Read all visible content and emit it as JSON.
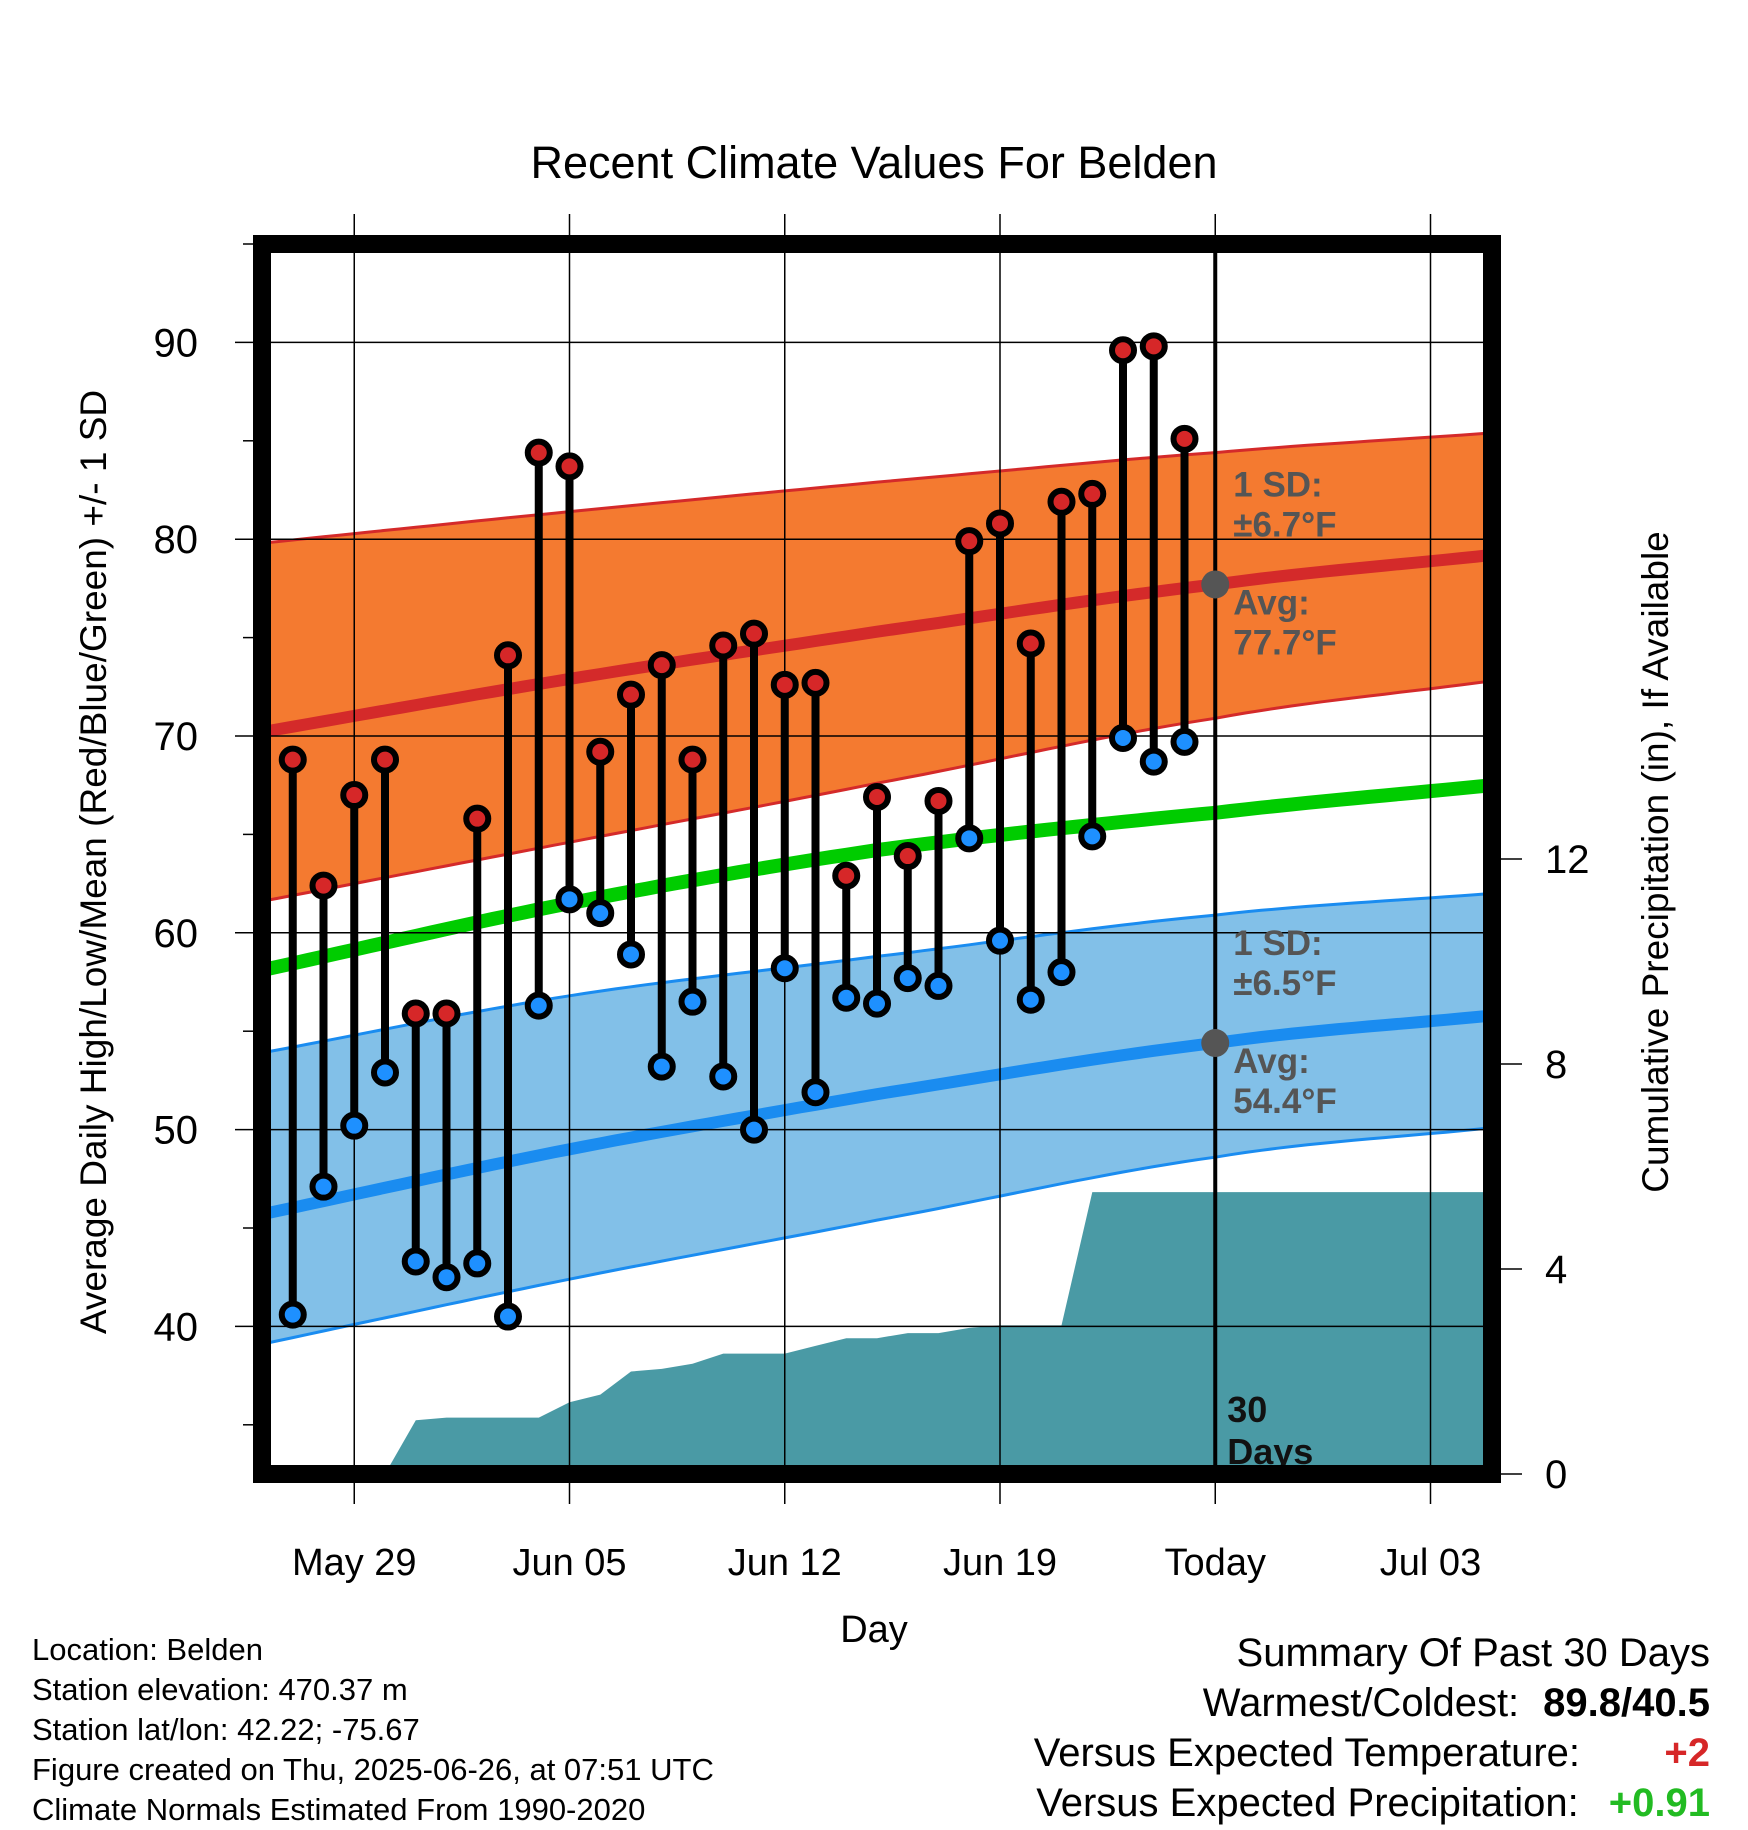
{
  "title": "Recent Climate Values For Belden",
  "chart_data": {
    "type": "line",
    "title": "Recent Climate Values For Belden",
    "xlabel": "Day",
    "ylabel": "Average Daily High/Low/Mean (Red/Blue/Green) +/- 1 SD",
    "y2label": "Cumulative Precipitation (in), If Available",
    "x_range": [
      "2025-05-26",
      "2025-07-05"
    ],
    "ylim": [
      32.5,
      95
    ],
    "y2lim": [
      0,
      24
    ],
    "y_ticks": [
      40,
      50,
      60,
      70,
      80,
      90
    ],
    "y2_ticks": [
      0,
      4,
      8,
      12
    ],
    "x_ticks": [
      {
        "date": "2025-05-29",
        "label": "May 29"
      },
      {
        "date": "2025-06-05",
        "label": "Jun 05"
      },
      {
        "date": "2025-06-12",
        "label": "Jun 12"
      },
      {
        "date": "2025-06-19",
        "label": "Jun 19"
      },
      {
        "date": "2025-06-26",
        "label": "Today"
      },
      {
        "date": "2025-07-03",
        "label": "Jul 03"
      }
    ],
    "grid": true,
    "today_marker": {
      "date": "2025-06-26",
      "label_line1": "30",
      "label_line2": "Days"
    },
    "daily": {
      "dates": [
        "2025-05-27",
        "2025-05-28",
        "2025-05-29",
        "2025-05-30",
        "2025-05-31",
        "2025-06-01",
        "2025-06-02",
        "2025-06-03",
        "2025-06-04",
        "2025-06-05",
        "2025-06-06",
        "2025-06-07",
        "2025-06-08",
        "2025-06-09",
        "2025-06-10",
        "2025-06-11",
        "2025-06-12",
        "2025-06-13",
        "2025-06-14",
        "2025-06-15",
        "2025-06-16",
        "2025-06-17",
        "2025-06-18",
        "2025-06-19",
        "2025-06-20",
        "2025-06-21",
        "2025-06-22",
        "2025-06-23",
        "2025-06-24",
        "2025-06-25"
      ],
      "highs": [
        68.8,
        62.4,
        67.0,
        68.8,
        55.9,
        55.9,
        65.8,
        74.1,
        84.4,
        83.7,
        69.2,
        72.1,
        73.6,
        68.8,
        74.6,
        75.2,
        72.6,
        72.7,
        62.9,
        66.9,
        63.9,
        66.7,
        79.9,
        80.8,
        74.7,
        81.9,
        82.3,
        89.6,
        89.8,
        85.1
      ],
      "lows": [
        40.6,
        47.1,
        50.2,
        52.9,
        43.3,
        42.5,
        43.2,
        40.5,
        56.3,
        61.7,
        61.0,
        58.9,
        53.2,
        56.5,
        52.7,
        50.0,
        58.2,
        51.9,
        56.7,
        56.4,
        57.7,
        57.3,
        64.8,
        59.6,
        56.6,
        58.0,
        64.9,
        69.9,
        68.7,
        69.7
      ]
    },
    "normal_high": {
      "dates": [
        "2025-05-26",
        "2025-06-05",
        "2025-06-15",
        "2025-06-26",
        "2025-07-05"
      ],
      "avg": [
        70.2,
        72.9,
        75.3,
        77.7,
        79.2
      ],
      "upper": [
        79.8,
        81.4,
        82.9,
        84.4,
        85.4
      ],
      "lower": [
        61.6,
        64.6,
        67.6,
        70.9,
        72.8
      ]
    },
    "normal_mean": {
      "dates": [
        "2025-05-26",
        "2025-06-05",
        "2025-06-15",
        "2025-06-26",
        "2025-07-05"
      ],
      "avg": [
        58.1,
        61.5,
        64.2,
        66.1,
        67.5
      ]
    },
    "normal_low": {
      "dates": [
        "2025-05-26",
        "2025-06-05",
        "2025-06-15",
        "2025-06-26",
        "2025-07-05"
      ],
      "avg": [
        45.7,
        49.0,
        51.8,
        54.4,
        55.8
      ],
      "upper": [
        53.9,
        56.8,
        58.8,
        60.9,
        62.0
      ],
      "lower": [
        39.1,
        42.4,
        45.4,
        48.6,
        50.1
      ]
    },
    "precip": {
      "dates": [
        "2025-05-27",
        "2025-05-30",
        "2025-05-31",
        "2025-06-01",
        "2025-06-04",
        "2025-06-05",
        "2025-06-06",
        "2025-06-07",
        "2025-06-08",
        "2025-06-09",
        "2025-06-10",
        "2025-06-11",
        "2025-06-12",
        "2025-06-13",
        "2025-06-14",
        "2025-06-15",
        "2025-06-16",
        "2025-06-17",
        "2025-06-18",
        "2025-06-19",
        "2025-06-20",
        "2025-06-21",
        "2025-06-22",
        "2025-06-26",
        "2025-07-05"
      ],
      "cumulative": [
        0.0,
        0.0,
        1.05,
        1.1,
        1.1,
        1.4,
        1.55,
        2.0,
        2.05,
        2.15,
        2.35,
        2.35,
        2.35,
        2.5,
        2.65,
        2.65,
        2.75,
        2.75,
        2.85,
        2.9,
        2.9,
        2.9,
        5.5,
        5.5,
        5.5
      ]
    },
    "annotations": {
      "high_sd": {
        "line1": "1 SD:",
        "line2": "±6.7°F"
      },
      "high_avg": {
        "line1": "Avg:",
        "line2": "77.7°F",
        "value": 77.7
      },
      "low_sd": {
        "line1": "1 SD:",
        "line2": "±6.5°F"
      },
      "low_avg": {
        "line1": "Avg:",
        "line2": "54.4°F",
        "value": 54.4
      }
    },
    "colors": {
      "high_band": "#f47a30",
      "high_line": "#d42a2a",
      "low_band": "#82c0e8",
      "low_line": "#1a8cf0",
      "mean_line": "#00cc00",
      "precip_fill": "#4a9aa5",
      "high_dot": "#d62728",
      "low_dot": "#1e90ff",
      "annotation": "#555555"
    }
  },
  "info": {
    "location": "Location: Belden",
    "elevation": "Station elevation: 470.37 m",
    "latlon": "Station lat/lon: 42.22; -75.67",
    "created": "Figure created on Thu, 2025-06-26, at 07:51 UTC",
    "normals": "Climate Normals Estimated From 1990-2020"
  },
  "summary": {
    "title": "Summary Of Past 30 Days",
    "warm_label": "Warmest/Coldest:",
    "warm_value": "89.8/40.5",
    "temp_label": "Versus Expected Temperature:",
    "temp_value": "+2",
    "precip_label": "Versus Expected Precipitation:",
    "precip_value": "+0.91"
  }
}
